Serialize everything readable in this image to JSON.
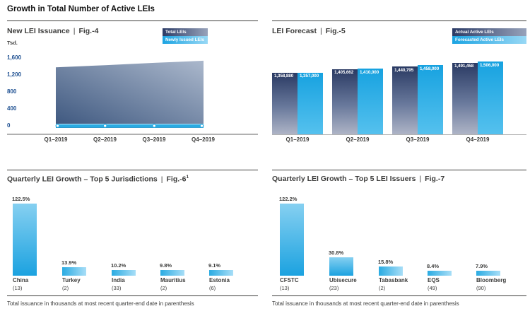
{
  "page": {
    "title": "Growth in Total Number of Active LEIs",
    "sep": "|"
  },
  "footnote": "Total issuance in thousands at most recent quarter-end date in parenthesis",
  "colors": {
    "accent_blue": "#29abe2",
    "dark_navy": "#2b3b66",
    "tick_blue": "#1d4f91",
    "text_dark": "#3c3c3b",
    "axis_gray": "#b1b1b1"
  },
  "chart_data": [
    {
      "id": "fig4",
      "type": "area",
      "title": "New LEI Issuance",
      "fig": "Fig.-4",
      "ylabel": "Tsd.",
      "x": [
        "Q1–2019",
        "Q2–2019",
        "Q3–2019",
        "Q4–2019"
      ],
      "yticks": [
        "1,600",
        "1,200",
        "800",
        "400",
        "0"
      ],
      "ylim": [
        0,
        1600
      ],
      "legend_position": "top-right",
      "series": [
        {
          "name": "Total LEIs",
          "type": "area",
          "values": [
            1430,
            1480,
            1535,
            1585
          ]
        },
        {
          "name": "Newly Issued LEIs",
          "type": "line",
          "values": [
            50,
            50,
            50,
            50
          ]
        }
      ]
    },
    {
      "id": "fig5",
      "type": "bar",
      "title": "LEI Forecast",
      "fig": "Fig.-5",
      "x": [
        "Q1–2019",
        "Q2–2019",
        "Q3–2019",
        "Q4–2019"
      ],
      "legend_position": "top-right",
      "series": [
        {
          "name": "Actual Active LEIs",
          "values": [
            1358880,
            1405662,
            1440795,
            1491458
          ],
          "labels": [
            "1,358,880",
            "1,405,662",
            "1,440,795",
            "1,491,458"
          ]
        },
        {
          "name": "Forecasted Active LEIs",
          "values": [
            1357000,
            1410000,
            1458000,
            1506000
          ],
          "labels": [
            "1,357,000",
            "1,410,000",
            "1,458,000",
            "1,506,000"
          ]
        }
      ]
    },
    {
      "id": "fig6",
      "type": "bar",
      "title": "Quarterly LEI Growth – Top 5 Jurisdictions",
      "fig": "Fig.-6",
      "fig_sup": "1",
      "categories": [
        "China",
        "Turkey",
        "India",
        "Mauritius",
        "Estonia"
      ],
      "totals": [
        "(13)",
        "(2)",
        "(33)",
        "(2)",
        "(6)"
      ],
      "values": [
        122.5,
        13.9,
        10.2,
        9.8,
        9.1
      ],
      "value_labels": [
        "122.5%",
        "13.9%",
        "10.2%",
        "9.8%",
        "9.1%"
      ]
    },
    {
      "id": "fig7",
      "type": "bar",
      "title": "Quarterly LEI Growth – Top 5 LEI Issuers",
      "fig": "Fig.-7",
      "categories": [
        "CFSTC",
        "Ubisecure",
        "Tabasbank",
        "EQS",
        "Bloomberg"
      ],
      "totals": [
        "(13)",
        "(23)",
        "(2)",
        "(49)",
        "(90)"
      ],
      "values": [
        122.2,
        30.8,
        15.8,
        8.4,
        7.9
      ],
      "value_labels": [
        "122.2%",
        "30.8%",
        "15.8%",
        "8.4%",
        "7.9%"
      ]
    }
  ]
}
